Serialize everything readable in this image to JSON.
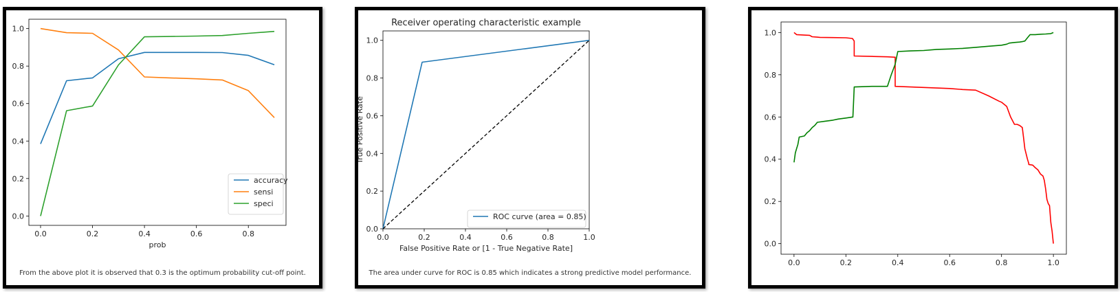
{
  "colors": {
    "blue": "#1f77b4",
    "orange": "#ff7f0e",
    "green": "#2ca02c",
    "red": "#ff0000",
    "dark_green": "#008000",
    "diagonal": "#000000"
  },
  "captions": {
    "panel1": "From the above plot it is observed that 0.3 is the optimum probability cut-off point.",
    "panel2": "The area under curve for ROC is 0.85 which indicates a strong predictive model performance."
  },
  "chart_data": [
    {
      "type": "line",
      "title": "",
      "xlabel": "prob",
      "ylabel": "",
      "xlim": [
        -0.045,
        0.945
      ],
      "ylim": [
        -0.05,
        1.05
      ],
      "xticks": [
        "0.0",
        "0.2",
        "0.4",
        "0.6",
        "0.8"
      ],
      "yticks": [
        "0.0",
        "0.2",
        "0.4",
        "0.6",
        "0.8",
        "1.0"
      ],
      "legend_position": "lower-right",
      "x": [
        0.0,
        0.1,
        0.2,
        0.3,
        0.4,
        0.5,
        0.6,
        0.7,
        0.8,
        0.9
      ],
      "series": [
        {
          "name": "accuracy",
          "color": "#1f77b4",
          "values": [
            0.385,
            0.722,
            0.737,
            0.839,
            0.873,
            0.873,
            0.873,
            0.872,
            0.857,
            0.807
          ]
        },
        {
          "name": "sensi",
          "color": "#ff7f0e",
          "values": [
            1.0,
            0.978,
            0.975,
            0.886,
            0.742,
            0.737,
            0.732,
            0.726,
            0.669,
            0.525
          ]
        },
        {
          "name": "speci",
          "color": "#2ca02c",
          "values": [
            0.0,
            0.562,
            0.587,
            0.806,
            0.956,
            0.958,
            0.96,
            0.963,
            0.975,
            0.985
          ]
        }
      ]
    },
    {
      "type": "line",
      "title": "Receiver operating characteristic example",
      "xlabel": "False Positive Rate or [1 - True Negative Rate]",
      "ylabel": "True Positive Rate",
      "xlim": [
        0.0,
        1.0
      ],
      "ylim": [
        0.0,
        1.05
      ],
      "xticks": [
        "0.0",
        "0.2",
        "0.4",
        "0.6",
        "0.8",
        "1.0"
      ],
      "yticks": [
        "0.0",
        "0.2",
        "0.4",
        "0.6",
        "0.8",
        "1.0"
      ],
      "legend_position": "lower-right",
      "series": [
        {
          "name": "ROC curve (area = 0.85)",
          "color": "#1f77b4",
          "x": [
            0.0,
            0.19,
            1.0
          ],
          "values": [
            0.0,
            0.884,
            1.0
          ]
        },
        {
          "name": "",
          "color": "#000000",
          "dashed": true,
          "x": [
            0.0,
            1.0
          ],
          "values": [
            0.0,
            1.0
          ]
        }
      ]
    },
    {
      "type": "line",
      "title": "",
      "xlabel": "",
      "ylabel": "",
      "xlim": [
        -0.05,
        1.05
      ],
      "ylim": [
        -0.05,
        1.05
      ],
      "xticks": [
        "0.0",
        "0.2",
        "0.4",
        "0.6",
        "0.8",
        "1.0"
      ],
      "yticks": [
        "0.0",
        "0.2",
        "0.4",
        "0.6",
        "0.8",
        "1.0"
      ],
      "series": [
        {
          "name": "",
          "color": "#ff0000",
          "x": [
            0.0,
            0.005,
            0.01,
            0.04,
            0.06,
            0.07,
            0.09,
            0.1,
            0.15,
            0.2,
            0.225,
            0.232,
            0.232,
            0.3,
            0.36,
            0.39,
            0.39,
            0.5,
            0.6,
            0.65,
            0.7,
            0.75,
            0.79,
            0.8,
            0.82,
            0.835,
            0.85,
            0.86,
            0.87,
            0.88,
            0.885,
            0.89,
            0.9,
            0.905,
            0.905,
            0.92,
            0.93,
            0.94,
            0.95,
            0.96,
            0.965,
            0.97,
            0.975,
            0.98,
            0.985,
            0.99,
            0.995,
            1.0
          ],
          "values": [
            1.0,
            0.995,
            0.99,
            0.988,
            0.987,
            0.98,
            0.978,
            0.977,
            0.976,
            0.975,
            0.972,
            0.96,
            0.889,
            0.887,
            0.885,
            0.883,
            0.745,
            0.74,
            0.735,
            0.73,
            0.727,
            0.7,
            0.675,
            0.67,
            0.65,
            0.6,
            0.565,
            0.565,
            0.56,
            0.55,
            0.5,
            0.45,
            0.4,
            0.38,
            0.375,
            0.372,
            0.36,
            0.35,
            0.33,
            0.32,
            0.3,
            0.26,
            0.21,
            0.19,
            0.18,
            0.1,
            0.06,
            0.0
          ]
        },
        {
          "name": "",
          "color": "#008000",
          "x": [
            0.0,
            0.005,
            0.01,
            0.015,
            0.02,
            0.04,
            0.05,
            0.06,
            0.07,
            0.08,
            0.09,
            0.12,
            0.15,
            0.17,
            0.2,
            0.227,
            0.232,
            0.232,
            0.3,
            0.36,
            0.375,
            0.39,
            0.4,
            0.45,
            0.5,
            0.55,
            0.6,
            0.65,
            0.7,
            0.75,
            0.8,
            0.82,
            0.83,
            0.85,
            0.87,
            0.88,
            0.89,
            0.9,
            0.91,
            0.93,
            0.95,
            0.97,
            0.99,
            1.0
          ],
          "values": [
            0.385,
            0.43,
            0.45,
            0.47,
            0.505,
            0.51,
            0.525,
            0.535,
            0.55,
            0.56,
            0.575,
            0.58,
            0.585,
            0.59,
            0.595,
            0.6,
            0.74,
            0.742,
            0.745,
            0.745,
            0.8,
            0.85,
            0.91,
            0.913,
            0.915,
            0.92,
            0.922,
            0.925,
            0.93,
            0.935,
            0.94,
            0.945,
            0.95,
            0.953,
            0.955,
            0.957,
            0.96,
            0.975,
            0.99,
            0.99,
            0.992,
            0.993,
            0.995,
            1.0
          ]
        }
      ]
    }
  ]
}
